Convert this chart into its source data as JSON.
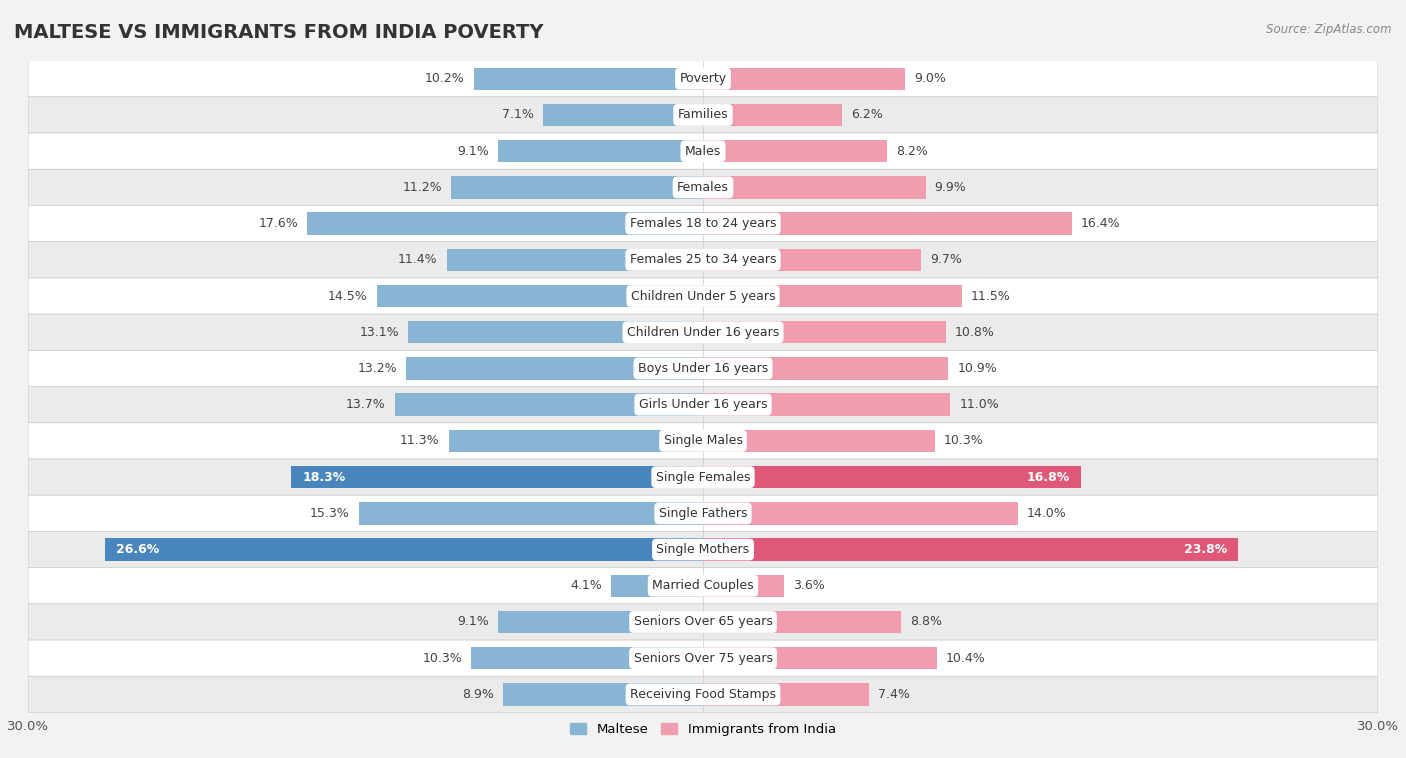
{
  "title": "MALTESE VS IMMIGRANTS FROM INDIA POVERTY",
  "source": "Source: ZipAtlas.com",
  "categories": [
    "Poverty",
    "Families",
    "Males",
    "Females",
    "Females 18 to 24 years",
    "Females 25 to 34 years",
    "Children Under 5 years",
    "Children Under 16 years",
    "Boys Under 16 years",
    "Girls Under 16 years",
    "Single Males",
    "Single Females",
    "Single Fathers",
    "Single Mothers",
    "Married Couples",
    "Seniors Over 65 years",
    "Seniors Over 75 years",
    "Receiving Food Stamps"
  ],
  "maltese": [
    10.2,
    7.1,
    9.1,
    11.2,
    17.6,
    11.4,
    14.5,
    13.1,
    13.2,
    13.7,
    11.3,
    18.3,
    15.3,
    26.6,
    4.1,
    9.1,
    10.3,
    8.9
  ],
  "india": [
    9.0,
    6.2,
    8.2,
    9.9,
    16.4,
    9.7,
    11.5,
    10.8,
    10.9,
    11.0,
    10.3,
    16.8,
    14.0,
    23.8,
    3.6,
    8.8,
    10.4,
    7.4
  ],
  "maltese_color": "#8ab4d4",
  "india_color": "#f09db0",
  "highlight_maltese": [
    11,
    13
  ],
  "highlight_india": [
    11,
    13
  ],
  "highlight_maltese_color": "#4a86be",
  "highlight_india_color": "#e05878",
  "row_colors": [
    "#ffffff",
    "#ebebeb"
  ],
  "separator_color": "#cccccc",
  "background_color": "#f2f2f2",
  "xlim": 30.0,
  "bar_height": 0.62,
  "label_fontsize": 9.0,
  "category_fontsize": 9.0,
  "title_fontsize": 14,
  "legend_labels": [
    "Maltese",
    "Immigrants from India"
  ],
  "axis_label_color": "#555555"
}
